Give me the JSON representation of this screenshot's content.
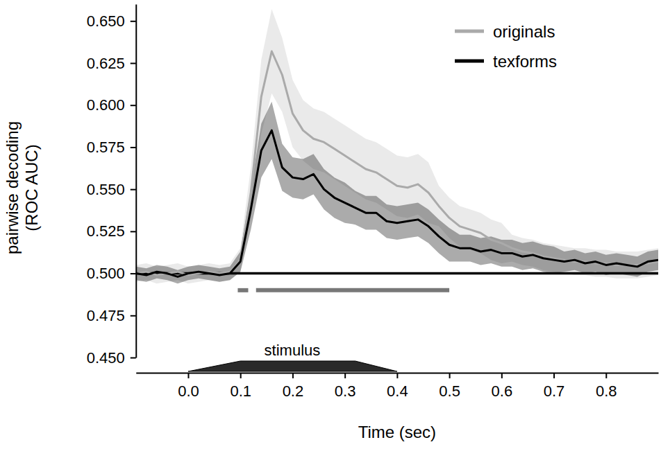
{
  "chart_data": {
    "type": "line",
    "ylabel": [
      "pairwise decoding",
      "(ROC AUC)"
    ],
    "xlabel": "Time (sec)",
    "xlim": [
      -0.1,
      0.9
    ],
    "ylim": [
      0.45,
      0.66
    ],
    "xticks": [
      {
        "value": 0,
        "label": "0.0"
      },
      0.1,
      0.2,
      0.3,
      0.4,
      0.5,
      0.6,
      0.7,
      0.8
    ],
    "yticks": [
      {
        "value": 0.45,
        "label": "0.450"
      },
      {
        "value": 0.475,
        "label": "0.475"
      },
      {
        "value": 0.5,
        "label": "0.500"
      },
      {
        "value": 0.525,
        "label": "0.525"
      },
      {
        "value": 0.55,
        "label": "0.550"
      },
      {
        "value": 0.575,
        "label": "0.575"
      },
      {
        "value": 0.6,
        "label": "0.600"
      },
      {
        "value": 0.625,
        "label": "0.625"
      },
      {
        "value": 0.65,
        "label": "0.650"
      }
    ],
    "legend": "upper right",
    "x": [
      -0.1,
      -0.08,
      -0.06,
      -0.04,
      -0.02,
      0,
      0.02,
      0.04,
      0.06,
      0.08,
      0.1,
      0.12,
      0.14,
      0.16,
      0.18,
      0.2,
      0.22,
      0.24,
      0.26,
      0.28,
      0.3,
      0.32,
      0.34,
      0.36,
      0.38,
      0.4,
      0.42,
      0.44,
      0.46,
      0.48,
      0.5,
      0.52,
      0.54,
      0.56,
      0.58,
      0.6,
      0.62,
      0.64,
      0.66,
      0.68,
      0.7,
      0.72,
      0.74,
      0.76,
      0.78,
      0.8,
      0.82,
      0.84,
      0.86,
      0.88,
      0.9
    ],
    "series": [
      {
        "name": "originals",
        "color": "#aaaaaa",
        "values": [
          0.5,
          0.501,
          0.499,
          0.5,
          0.501,
          0.499,
          0.5,
          0.501,
          0.5,
          0.501,
          0.508,
          0.548,
          0.605,
          0.632,
          0.618,
          0.595,
          0.585,
          0.58,
          0.578,
          0.574,
          0.57,
          0.566,
          0.562,
          0.56,
          0.556,
          0.552,
          0.551,
          0.553,
          0.548,
          0.54,
          0.533,
          0.528,
          0.526,
          0.524,
          0.52,
          0.518,
          0.515,
          0.513,
          0.512,
          0.51,
          0.509,
          0.508,
          0.507,
          0.507,
          0.506,
          0.506,
          0.505,
          0.505,
          0.505,
          0.506,
          0.507
        ],
        "errors": [
          0.005,
          0.005,
          0.005,
          0.005,
          0.005,
          0.005,
          0.005,
          0.005,
          0.005,
          0.005,
          0.007,
          0.015,
          0.022,
          0.025,
          0.022,
          0.02,
          0.018,
          0.018,
          0.018,
          0.018,
          0.018,
          0.018,
          0.018,
          0.018,
          0.018,
          0.018,
          0.018,
          0.018,
          0.018,
          0.012,
          0.012,
          0.012,
          0.012,
          0.012,
          0.012,
          0.012,
          0.008,
          0.008,
          0.008,
          0.008,
          0.008,
          0.008,
          0.008,
          0.008,
          0.008,
          0.008,
          0.008,
          0.008,
          0.008,
          0.008,
          0.008
        ]
      },
      {
        "name": "texforms",
        "color": "#000000",
        "values": [
          0.5,
          0.499,
          0.501,
          0.5,
          0.498,
          0.5,
          0.501,
          0.5,
          0.499,
          0.5,
          0.507,
          0.538,
          0.573,
          0.585,
          0.563,
          0.557,
          0.556,
          0.559,
          0.55,
          0.545,
          0.542,
          0.539,
          0.536,
          0.536,
          0.531,
          0.53,
          0.531,
          0.532,
          0.528,
          0.522,
          0.517,
          0.515,
          0.515,
          0.513,
          0.514,
          0.512,
          0.512,
          0.51,
          0.511,
          0.509,
          0.508,
          0.507,
          0.508,
          0.506,
          0.507,
          0.505,
          0.506,
          0.505,
          0.504,
          0.507,
          0.508
        ],
        "errors": [
          0.004,
          0.004,
          0.004,
          0.004,
          0.004,
          0.004,
          0.004,
          0.004,
          0.004,
          0.004,
          0.006,
          0.012,
          0.016,
          0.017,
          0.014,
          0.012,
          0.012,
          0.012,
          0.012,
          0.012,
          0.012,
          0.01,
          0.01,
          0.01,
          0.01,
          0.01,
          0.01,
          0.01,
          0.01,
          0.01,
          0.01,
          0.008,
          0.008,
          0.008,
          0.008,
          0.008,
          0.008,
          0.008,
          0.008,
          0.008,
          0.008,
          0.006,
          0.006,
          0.006,
          0.006,
          0.006,
          0.006,
          0.006,
          0.006,
          0.006,
          0.006
        ]
      }
    ],
    "chance_level": 0.5,
    "significance": {
      "y": 0.49,
      "intervals": [
        [
          0.095,
          0.115
        ],
        [
          0.13,
          0.5
        ]
      ]
    },
    "stimulus": {
      "label": "stimulus",
      "onset": 0,
      "ramp_end": 0.1,
      "ramp_start": 0.32,
      "offset": 0.4
    }
  }
}
